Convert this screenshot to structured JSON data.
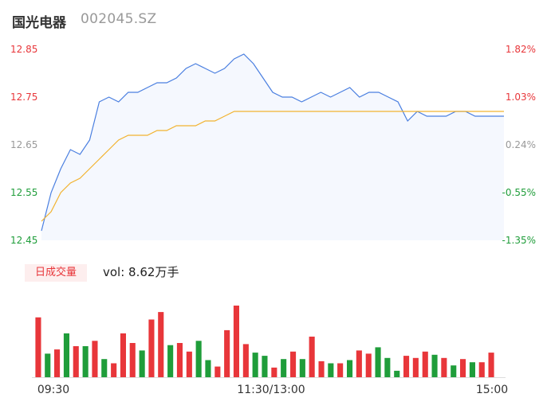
{
  "header": {
    "name": "国光电器",
    "code": "002045.SZ"
  },
  "volume_panel": {
    "tab_label": "日成交量",
    "vol_label": "vol: 8.62万手"
  },
  "colors": {
    "up": "#e8363a",
    "down": "#1f9d3a",
    "neutral": "#999999",
    "price_line": "#4a7fe0",
    "avg_line": "#f2b330",
    "area_fill": "#f5f8fe"
  },
  "chart_data": [
    {
      "type": "line",
      "title": "",
      "price_axis": {
        "ticks": [
          "12.85",
          "12.75",
          "12.65",
          "12.55",
          "12.45"
        ],
        "tick_values": [
          12.85,
          12.75,
          12.65,
          12.55,
          12.45
        ],
        "tick_kind": [
          "up",
          "up",
          "neutral",
          "down",
          "down"
        ]
      },
      "pct_axis": {
        "ticks": [
          "1.82%",
          "1.03%",
          "0.24%",
          "-0.55%",
          "-1.35%"
        ],
        "tick_kind": [
          "up",
          "up",
          "neutral",
          "down",
          "down"
        ]
      },
      "ylim": [
        12.45,
        12.85
      ],
      "x_ticks": [
        "09:30",
        "11:30/13:00",
        "15:00"
      ],
      "x": [
        "09:30",
        "09:35",
        "09:40",
        "09:45",
        "09:50",
        "09:55",
        "10:00",
        "10:05",
        "10:10",
        "10:15",
        "10:20",
        "10:25",
        "10:30",
        "10:35",
        "10:40",
        "10:45",
        "10:50",
        "10:55",
        "11:00",
        "11:05",
        "11:10",
        "11:15",
        "11:20",
        "11:25",
        "11:30",
        "13:05",
        "13:10",
        "13:15",
        "13:20",
        "13:25",
        "13:30",
        "13:35",
        "13:40",
        "13:45",
        "13:50",
        "13:55",
        "14:00",
        "14:05",
        "14:10",
        "14:15",
        "14:20",
        "14:25",
        "14:30",
        "14:35",
        "14:40",
        "14:45",
        "14:50",
        "14:55",
        "15:00"
      ],
      "series": [
        {
          "values": [
            12.47,
            12.55,
            12.6,
            12.64,
            12.63,
            12.66,
            12.74,
            12.75,
            12.74,
            12.76,
            12.76,
            12.77,
            12.78,
            12.78,
            12.79,
            12.81,
            12.82,
            12.81,
            12.8,
            12.81,
            12.83,
            12.84,
            12.82,
            12.79,
            12.76,
            12.75,
            12.75,
            12.74,
            12.75,
            12.76,
            12.75,
            12.76,
            12.77,
            12.75,
            12.76,
            12.76,
            12.75,
            12.74,
            12.7,
            12.72,
            12.71,
            12.71,
            12.71,
            12.72,
            12.72,
            12.71,
            12.71,
            12.71,
            12.71
          ]
        },
        {
          "values": [
            12.49,
            12.51,
            12.55,
            12.57,
            12.58,
            12.6,
            12.62,
            12.64,
            12.66,
            12.67,
            12.67,
            12.67,
            12.68,
            12.68,
            12.69,
            12.69,
            12.69,
            12.7,
            12.7,
            12.71,
            12.72,
            12.72,
            12.72,
            12.72,
            12.72,
            12.72,
            12.72,
            12.72,
            12.72,
            12.72,
            12.72,
            12.72,
            12.72,
            12.72,
            12.72,
            12.72,
            12.72,
            12.72,
            12.72,
            12.72,
            12.72,
            12.72,
            12.72,
            12.72,
            12.72,
            12.72,
            12.72,
            12.72,
            12.72
          ]
        }
      ]
    },
    {
      "type": "bar",
      "title": "",
      "ylabel": "",
      "values": [
        5.6,
        2.2,
        2.6,
        4.1,
        2.9,
        2.9,
        3.4,
        1.7,
        1.3,
        4.1,
        3.2,
        2.5,
        5.4,
        6.1,
        3.0,
        3.2,
        2.4,
        3.4,
        1.6,
        1.0,
        4.4,
        6.7,
        3.1,
        2.3,
        2.0,
        0.9,
        1.7,
        2.4,
        1.7,
        3.8,
        1.5,
        1.3,
        1.3,
        1.6,
        2.5,
        2.2,
        2.8,
        1.8,
        0.6,
        2.0,
        1.8,
        2.4,
        2.1,
        1.8,
        1.1,
        1.7,
        1.4,
        1.4,
        2.3
      ],
      "directions": [
        "up",
        "down",
        "up",
        "down",
        "up",
        "down",
        "up",
        "down",
        "up",
        "up",
        "up",
        "down",
        "up",
        "up",
        "down",
        "up",
        "up",
        "down",
        "down",
        "up",
        "up",
        "up",
        "up",
        "down",
        "down",
        "up",
        "down",
        "up",
        "down",
        "up",
        "up",
        "down",
        "up",
        "down",
        "up",
        "up",
        "down",
        "down",
        "down",
        "up",
        "up",
        "up",
        "down",
        "up",
        "down",
        "up",
        "down",
        "up",
        "up"
      ]
    }
  ]
}
